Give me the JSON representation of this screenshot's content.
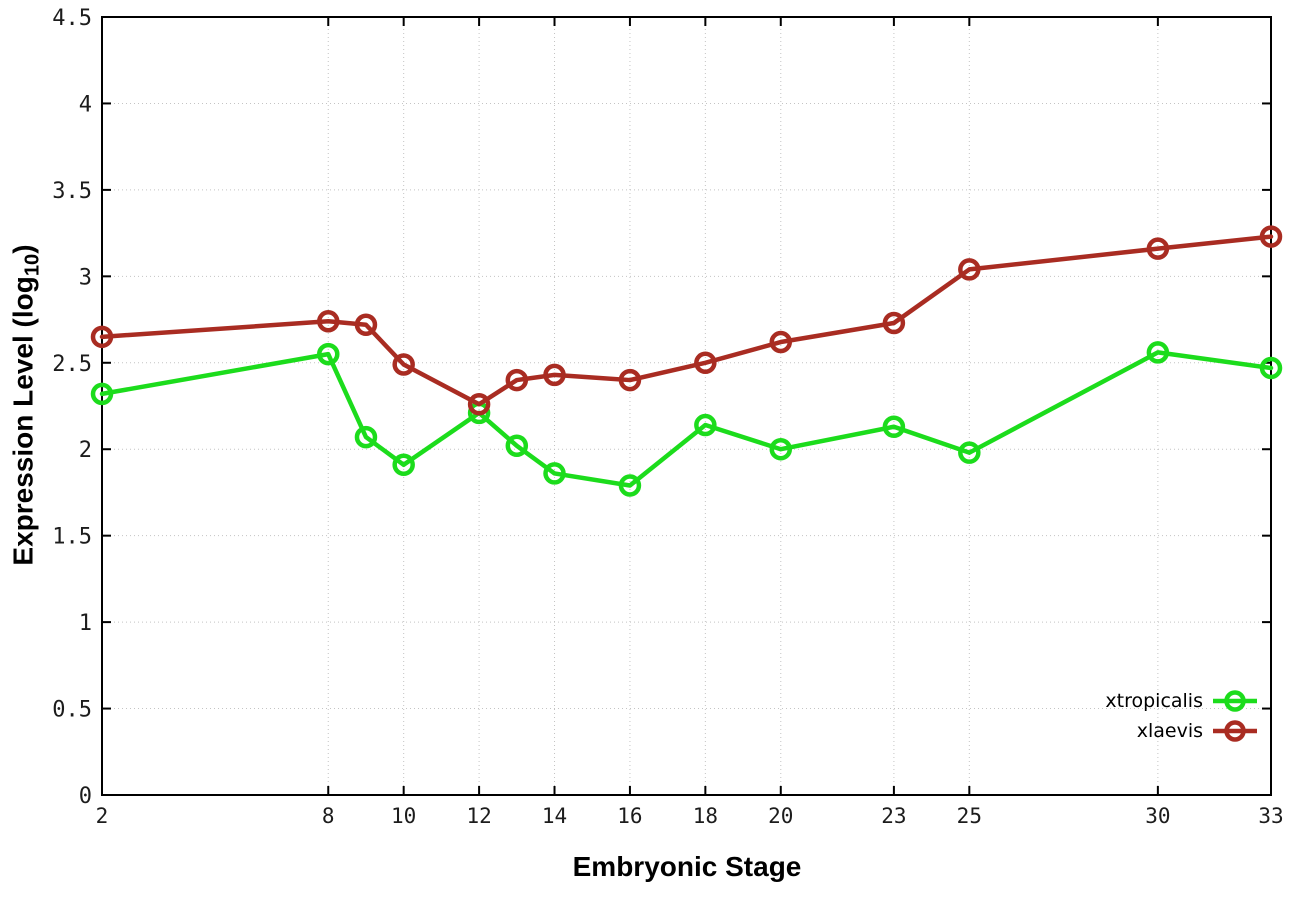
{
  "chart_data": {
    "type": "line",
    "title": "",
    "xlabel": "Embryonic Stage",
    "ylabel": "Expression Level (log10)",
    "ylabel_parts": {
      "main": "Expression Level (log",
      "sub": "10",
      "end": ")"
    },
    "xlim": [
      2,
      33
    ],
    "ylim": [
      0,
      4.5
    ],
    "xticks": [
      2,
      8,
      10,
      12,
      14,
      16,
      18,
      20,
      23,
      25,
      30,
      33
    ],
    "xtick_labels": [
      "2",
      "8",
      "10",
      "12",
      "14",
      "16",
      "18",
      "20",
      "23",
      "25",
      "30",
      "33"
    ],
    "yticks": [
      0,
      0.5,
      1,
      1.5,
      2,
      2.5,
      3,
      3.5,
      4,
      4.5
    ],
    "ytick_labels": [
      "0",
      "0.5",
      "1",
      "1.5",
      "2",
      "2.5",
      "3",
      "3.5",
      "4",
      "4.5"
    ],
    "grid": true,
    "grid_style": "dotted",
    "legend_position": "bottom-right-inside",
    "marker": "open-circle",
    "series": [
      {
        "name": "xtropicalis",
        "color": "#1cdc1c",
        "x": [
          2,
          8,
          9,
          10,
          12,
          13,
          14,
          16,
          18,
          20,
          23,
          25,
          30,
          33
        ],
        "y": [
          2.32,
          2.55,
          2.07,
          1.91,
          2.21,
          2.02,
          1.86,
          1.79,
          2.14,
          2.0,
          2.13,
          1.98,
          2.56,
          2.47
        ]
      },
      {
        "name": "xlaevis",
        "color": "#a92c22",
        "x": [
          2,
          8,
          9,
          10,
          12,
          13,
          14,
          16,
          18,
          20,
          23,
          25,
          30,
          33
        ],
        "y": [
          2.65,
          2.74,
          2.72,
          2.49,
          2.26,
          2.4,
          2.43,
          2.4,
          2.5,
          2.62,
          2.73,
          3.04,
          3.16,
          3.23
        ]
      }
    ]
  },
  "colors": {
    "background": "#ffffff",
    "border": "#000000",
    "grid": "#c4c4c4",
    "tick": "#000000",
    "tick_label": "#1c1c1c"
  }
}
